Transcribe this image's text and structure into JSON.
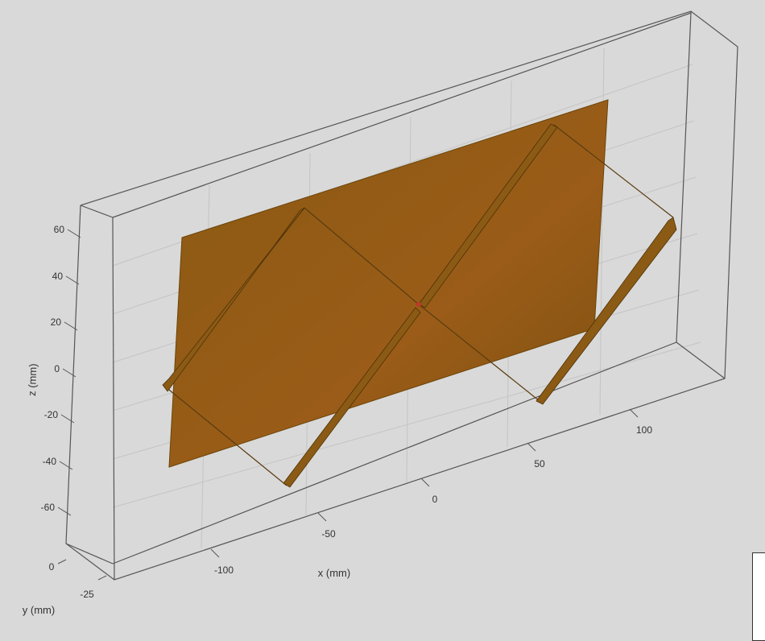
{
  "colors": {
    "background": "#d9d9d9",
    "box_edge": "#555555",
    "grid": "#bdbdbd",
    "ground_plane": "#8a5a12",
    "ground_plane_shade": "#9a5c18",
    "strip": "#8b5a14",
    "feed": "#c0392b",
    "text": "#333333"
  },
  "axes": {
    "z_label": "z (mm)",
    "x_label": "x (mm)",
    "y_label": "y (mm)",
    "z_ticks": [
      "60",
      "40",
      "20",
      "0",
      "-20",
      "-40",
      "-60"
    ],
    "x_ticks": [
      "-100",
      "-50",
      "0",
      "50",
      "100"
    ],
    "y_ticks": [
      "0",
      "-25"
    ]
  },
  "objects": {
    "ground_plane": "rectangular conducting plane",
    "dipole_arms": 4,
    "feed_point": "center feed"
  }
}
